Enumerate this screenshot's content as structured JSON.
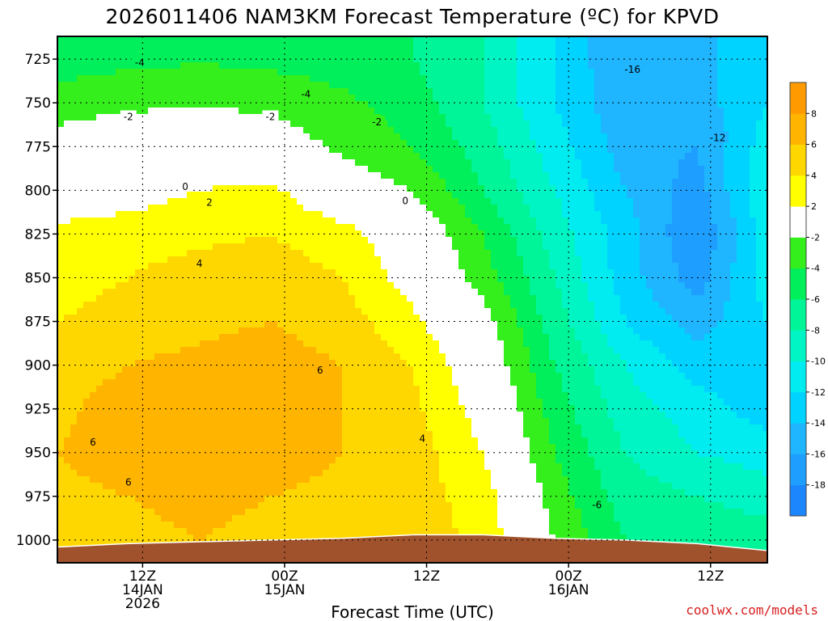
{
  "chart_data": {
    "type": "heatmap",
    "title": "2026011406 NAM3KM Forecast Temperature (ºC) for KPVD",
    "xlabel": "Forecast Time (UTC)",
    "ylabel": "",
    "credit": "coolwx.com/models",
    "y_axis": {
      "unit": "hPa",
      "range": [
        712,
        1013
      ],
      "ticks": [
        725,
        750,
        775,
        800,
        825,
        850,
        875,
        900,
        925,
        950,
        975,
        1000
      ],
      "tick_labels": [
        "725",
        "750",
        "775",
        "800",
        "825",
        "850",
        "875",
        "900",
        "925",
        "950",
        "975",
        "1000"
      ]
    },
    "x_axis": {
      "unit": "forecast hour",
      "range": [
        0,
        50
      ],
      "ticks": [
        {
          "hour": 6,
          "lines": [
            "12Z",
            "14JAN",
            "2026"
          ]
        },
        {
          "hour": 16,
          "lines": [
            "00Z",
            "15JAN"
          ]
        },
        {
          "hour": 26,
          "lines": [
            "12Z"
          ]
        },
        {
          "hour": 36,
          "lines": [
            "00Z",
            "16JAN"
          ]
        },
        {
          "hour": 46,
          "lines": [
            "12Z"
          ]
        }
      ]
    },
    "colorbar": {
      "levels": [
        -18,
        -16,
        -14,
        -12,
        -10,
        -8,
        -6,
        -4,
        -2,
        2,
        4,
        6,
        8
      ],
      "bins": [
        {
          "range": [
            -20,
            -18
          ],
          "color": "#1c86ff"
        },
        {
          "range": [
            -18,
            -16
          ],
          "color": "#1e9fff"
        },
        {
          "range": [
            -16,
            -14
          ],
          "color": "#1fb5ff"
        },
        {
          "range": [
            -14,
            -12
          ],
          "color": "#00d3ff"
        },
        {
          "range": [
            -12,
            -10
          ],
          "color": "#00ecf0"
        },
        {
          "range": [
            -10,
            -8
          ],
          "color": "#00f5c4"
        },
        {
          "range": [
            -8,
            -6
          ],
          "color": "#00f599"
        },
        {
          "range": [
            -6,
            -4
          ],
          "color": "#00ef5a"
        },
        {
          "range": [
            -4,
            -2
          ],
          "color": "#35ef1c"
        },
        {
          "range": [
            -2,
            2
          ],
          "color": "#ffffff"
        },
        {
          "range": [
            2,
            4
          ],
          "color": "#ffff00"
        },
        {
          "range": [
            4,
            6
          ],
          "color": "#ffd700"
        },
        {
          "range": [
            6,
            8
          ],
          "color": "#ffb400"
        },
        {
          "range": [
            8,
            10
          ],
          "color": "#ff9b00"
        }
      ]
    },
    "terrain_color": "#a0522d",
    "freezing_line_color": "#c8146e",
    "series": [
      {
        "name": "level 725 hPa",
        "pressure": 725,
        "hours": [
          0,
          5,
          10,
          15,
          20,
          25,
          30,
          35,
          40,
          45,
          50
        ],
        "temps": [
          -5,
          -4.5,
          -4.2,
          -4.5,
          -5,
          -6,
          -8,
          -12,
          -16,
          -15,
          -12
        ]
      },
      {
        "name": "level 750 hPa",
        "pressure": 750,
        "hours": [
          0,
          5,
          10,
          15,
          20,
          25,
          30,
          35,
          40,
          45,
          50
        ],
        "temps": [
          -3,
          -2.5,
          -2.2,
          -2.5,
          -3.5,
          -5,
          -8,
          -12,
          -15.5,
          -15,
          -12
        ]
      },
      {
        "name": "level 775 hPa",
        "pressure": 775,
        "hours": [
          0,
          5,
          10,
          15,
          20,
          25,
          30,
          35,
          40,
          45,
          50
        ],
        "temps": [
          -1,
          0,
          -0.3,
          -0.5,
          -2.5,
          -4,
          -7,
          -11,
          -15,
          -16,
          -11
        ]
      },
      {
        "name": "level 800 hPa",
        "pressure": 800,
        "hours": [
          0,
          5,
          10,
          15,
          20,
          25,
          30,
          35,
          40,
          45,
          50
        ],
        "temps": [
          0.5,
          1,
          2,
          2.5,
          -0.5,
          -2,
          -6,
          -10,
          -14,
          -17,
          -10
        ]
      },
      {
        "name": "level 825 hPa",
        "pressure": 825,
        "hours": [
          0,
          5,
          10,
          15,
          20,
          25,
          30,
          35,
          40,
          45,
          50
        ],
        "temps": [
          2.5,
          3,
          3.5,
          4,
          3,
          0,
          -4,
          -9,
          -13,
          -18,
          -11
        ]
      },
      {
        "name": "level 850 hPa",
        "pressure": 850,
        "hours": [
          0,
          5,
          10,
          15,
          20,
          25,
          30,
          35,
          40,
          45,
          50
        ],
        "temps": [
          3,
          4,
          5,
          5,
          4,
          1,
          -3,
          -8,
          -13,
          -17,
          -11
        ]
      },
      {
        "name": "level 875 hPa",
        "pressure": 875,
        "hours": [
          0,
          5,
          10,
          15,
          20,
          25,
          30,
          35,
          40,
          45,
          50
        ],
        "temps": [
          4,
          5,
          5.5,
          6,
          5,
          2.5,
          -1,
          -7,
          -12,
          -15,
          -12
        ]
      },
      {
        "name": "level 900 hPa",
        "pressure": 900,
        "hours": [
          0,
          5,
          10,
          15,
          20,
          25,
          30,
          35,
          40,
          45,
          50
        ],
        "temps": [
          5,
          6,
          6.5,
          7,
          6,
          4,
          0,
          -6,
          -10,
          -13,
          -13
        ]
      },
      {
        "name": "level 925 hPa",
        "pressure": 925,
        "hours": [
          0,
          5,
          10,
          15,
          20,
          25,
          30,
          35,
          40,
          45,
          50
        ],
        "temps": [
          5.5,
          7,
          8,
          7,
          6,
          4.5,
          1,
          -5,
          -9,
          -11,
          -13
        ]
      },
      {
        "name": "level 950 hPa",
        "pressure": 950,
        "hours": [
          0,
          5,
          10,
          15,
          20,
          25,
          30,
          35,
          40,
          45,
          50
        ],
        "temps": [
          6,
          7,
          7.5,
          7,
          6,
          5,
          2,
          -4,
          -8,
          -10,
          -11
        ]
      },
      {
        "name": "level 975 hPa",
        "pressure": 975,
        "hours": [
          0,
          5,
          10,
          15,
          20,
          25,
          30,
          35,
          40,
          45,
          50
        ],
        "temps": [
          5.5,
          6,
          6.5,
          6,
          5.5,
          5,
          3,
          -3,
          -7,
          -8,
          -9
        ]
      },
      {
        "name": "level 1000 hPa",
        "pressure": 1000,
        "hours": [
          0,
          5,
          10,
          15,
          20,
          25,
          30,
          35,
          40,
          45,
          50
        ],
        "temps": [
          5,
          5.5,
          6,
          5.5,
          5,
          5,
          3.5,
          -2,
          -6,
          -6.5,
          -7
        ]
      }
    ],
    "surface_pressure": {
      "hours": [
        0,
        5,
        10,
        15,
        20,
        25,
        30,
        35,
        40,
        45,
        50
      ],
      "pressures": [
        1004,
        1002,
        1001,
        1000,
        999,
        997,
        997,
        999,
        1000,
        1002,
        1006
      ]
    },
    "contour_labels": [
      {
        "text": "-4",
        "hour": 5.8,
        "pressure": 727
      },
      {
        "text": "-4",
        "hour": 17.5,
        "pressure": 745
      },
      {
        "text": "-2",
        "hour": 5,
        "pressure": 758
      },
      {
        "text": "-2",
        "hour": 15,
        "pressure": 758
      },
      {
        "text": "-2",
        "hour": 22.5,
        "pressure": 761
      },
      {
        "text": "0",
        "hour": 9,
        "pressure": 798
      },
      {
        "text": "2",
        "hour": 10.7,
        "pressure": 807
      },
      {
        "text": "0",
        "hour": 24.5,
        "pressure": 806
      },
      {
        "text": "4",
        "hour": 10,
        "pressure": 842
      },
      {
        "text": "6",
        "hour": 18.5,
        "pressure": 903
      },
      {
        "text": "4",
        "hour": 25.7,
        "pressure": 942
      },
      {
        "text": "6",
        "hour": 2.5,
        "pressure": 944
      },
      {
        "text": "6",
        "hour": 5,
        "pressure": 967
      },
      {
        "text": "-6",
        "hour": 38,
        "pressure": 980
      },
      {
        "text": "-16",
        "hour": 40.5,
        "pressure": 731
      },
      {
        "text": "-12",
        "hour": 46.5,
        "pressure": 770
      }
    ]
  }
}
